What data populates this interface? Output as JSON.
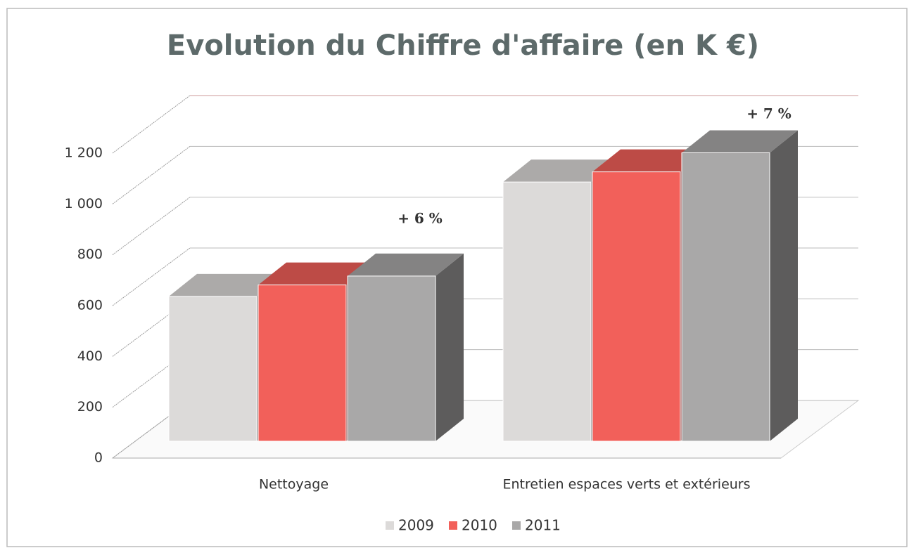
{
  "chart_data": {
    "type": "bar3d",
    "title": "Evolution du Chiffre d'affaire (en K €)",
    "categories": [
      "Nettoyage",
      "Entretien espaces verts et extérieurs"
    ],
    "series": [
      {
        "name": "2009",
        "color": "#dcdad9",
        "values": [
          570,
          1020
        ]
      },
      {
        "name": "2010",
        "color": "#f2605a",
        "values": [
          615,
          1060
        ]
      },
      {
        "name": "2011",
        "color": "#a9a8a8",
        "values": [
          650,
          1135
        ]
      }
    ],
    "ylim": [
      0,
      1200
    ],
    "yticks": [
      0,
      200,
      400,
      600,
      800,
      {
        "value": 1000,
        "label": "1 000"
      },
      {
        "value": 1200,
        "label": "1 200"
      }
    ],
    "grid": true,
    "legend": "bottom",
    "annotations": [
      "+ 6 %",
      "+ 7 %"
    ]
  }
}
